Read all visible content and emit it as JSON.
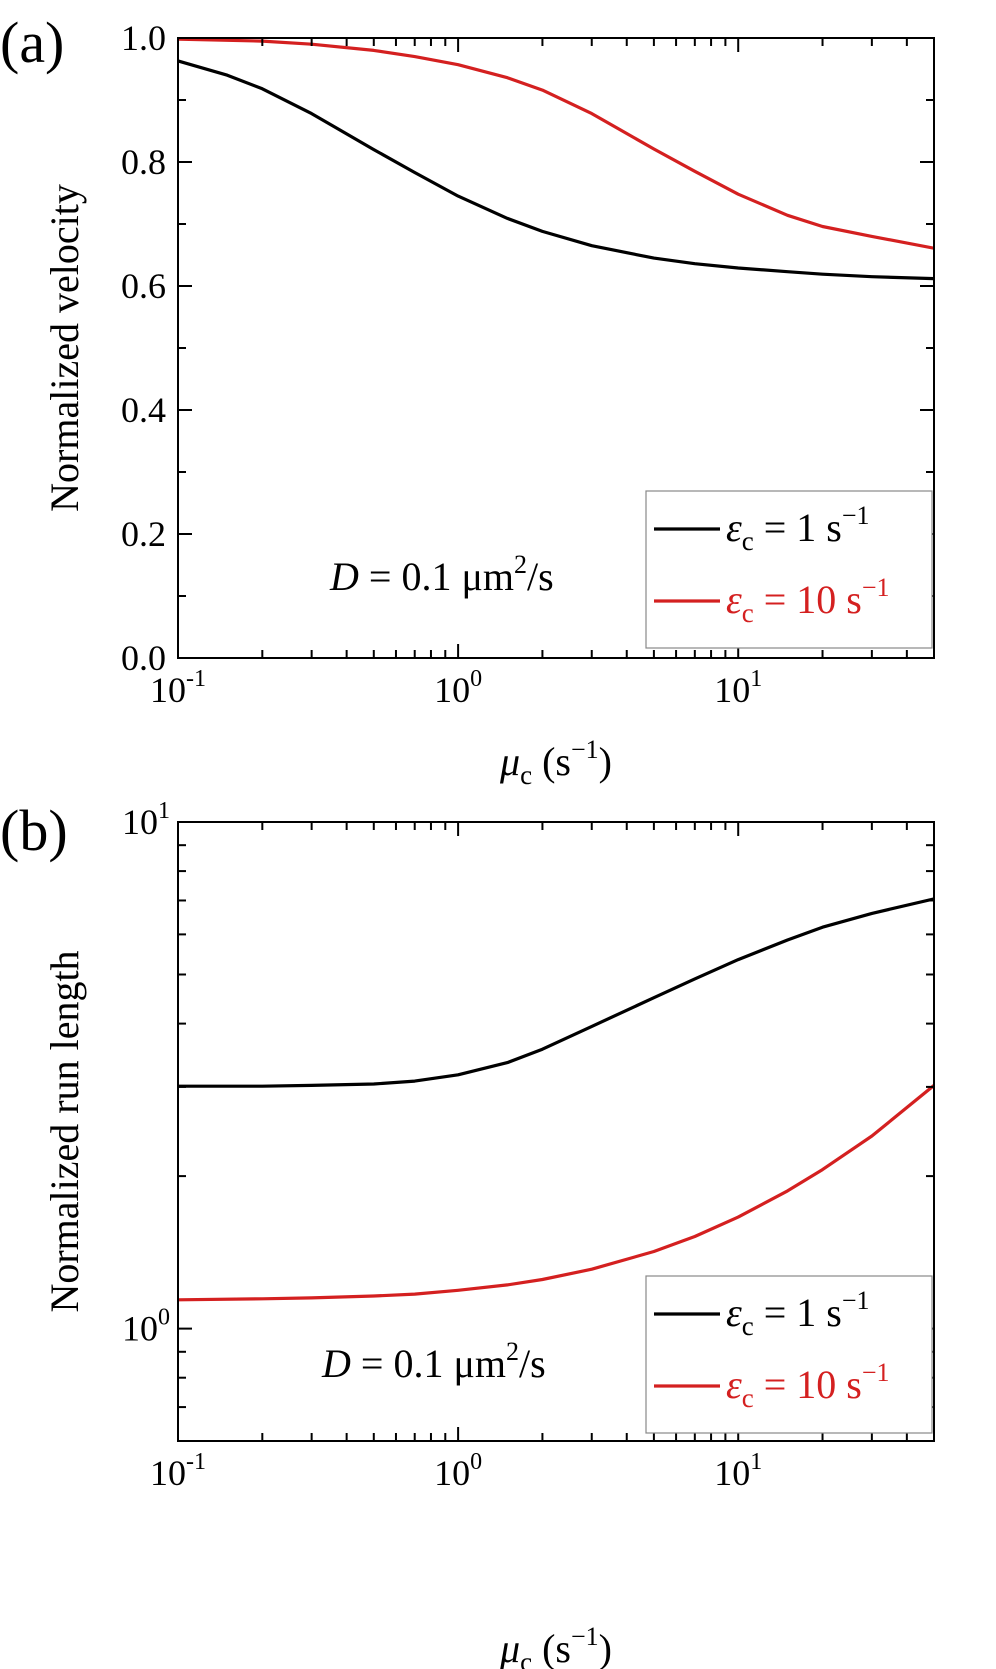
{
  "figure": {
    "panels": [
      {
        "panel_label": "(a)",
        "annotation": {
          "var": "D",
          "eq": " = 0.1 ",
          "unit": "μm",
          "exp": "2",
          "tail": "/s"
        },
        "xlabel": {
          "var": "μ",
          "sub": "c",
          "pre": " (s",
          "exp": "−1",
          "post": ")"
        },
        "ylabel": "Normalized velocity",
        "legend": [
          {
            "var": "ε",
            "sub": "c",
            "eq": " = 1 s",
            "exp": "−1",
            "color": "#000000"
          },
          {
            "var": "ε",
            "sub": "c",
            "eq": " = 10 s",
            "exp": "−1",
            "color": "#d42020"
          }
        ]
      },
      {
        "panel_label": "(b)",
        "annotation": {
          "var": "D",
          "eq": " = 0.1 ",
          "unit": "μm",
          "exp": "2",
          "tail": "/s"
        },
        "xlabel": {
          "var": "μ",
          "sub": "c",
          "pre": " (s",
          "exp": "−1",
          "post": ")"
        },
        "ylabel": "Normalized run length",
        "legend": [
          {
            "var": "ε",
            "sub": "c",
            "eq": " = 1 s",
            "exp": "−1",
            "color": "#000000"
          },
          {
            "var": "ε",
            "sub": "c",
            "eq": " = 10 s",
            "exp": "−1",
            "color": "#d42020"
          }
        ]
      }
    ]
  },
  "chart_data": [
    {
      "type": "line",
      "x_scale": "log",
      "y_scale": "linear",
      "xlim": [
        0.1,
        50
      ],
      "ylim": [
        0.0,
        1.0
      ],
      "x_ticks": [
        {
          "base": "10",
          "exp": "-1",
          "value": 0.1
        },
        {
          "base": "10",
          "exp": "0",
          "value": 1
        },
        {
          "base": "10",
          "exp": "1",
          "value": 10
        }
      ],
      "y_ticks": [
        {
          "label": "0.0",
          "value": 0.0
        },
        {
          "label": "0.2",
          "value": 0.2
        },
        {
          "label": "0.4",
          "value": 0.4
        },
        {
          "label": "0.6",
          "value": 0.6
        },
        {
          "label": "0.8",
          "value": 0.8
        },
        {
          "label": "1.0",
          "value": 1.0
        }
      ],
      "legend_position": "bottom-right",
      "grid": false,
      "series": [
        {
          "color": "#000000",
          "x": [
            0.1,
            0.15,
            0.2,
            0.3,
            0.5,
            0.7,
            1,
            1.5,
            2,
            3,
            5,
            7,
            10,
            15,
            20,
            30,
            50
          ],
          "y": [
            0.963,
            0.94,
            0.918,
            0.878,
            0.82,
            0.783,
            0.745,
            0.709,
            0.688,
            0.665,
            0.645,
            0.636,
            0.629,
            0.623,
            0.619,
            0.615,
            0.612
          ]
        },
        {
          "color": "#d42020",
          "x": [
            0.1,
            0.2,
            0.3,
            0.5,
            0.7,
            1,
            1.5,
            2,
            3,
            5,
            7,
            10,
            15,
            20,
            30,
            50
          ],
          "y": [
            0.998,
            0.995,
            0.99,
            0.98,
            0.97,
            0.957,
            0.936,
            0.916,
            0.878,
            0.821,
            0.785,
            0.748,
            0.714,
            0.696,
            0.68,
            0.661
          ]
        }
      ]
    },
    {
      "type": "line",
      "x_scale": "log",
      "y_scale": "log",
      "xlim": [
        0.1,
        50
      ],
      "ylim": [
        0.6,
        10
      ],
      "x_ticks": [
        {
          "base": "10",
          "exp": "-1",
          "value": 0.1
        },
        {
          "base": "10",
          "exp": "0",
          "value": 1
        },
        {
          "base": "10",
          "exp": "1",
          "value": 10
        }
      ],
      "y_ticks": [
        {
          "base": "10",
          "exp": "0",
          "value": 1
        },
        {
          "base": "10",
          "exp": "1",
          "value": 10
        }
      ],
      "legend_position": "bottom-right",
      "grid": false,
      "series": [
        {
          "color": "#000000",
          "x": [
            0.1,
            0.2,
            0.3,
            0.5,
            0.7,
            1,
            1.5,
            2,
            3,
            5,
            7,
            10,
            15,
            20,
            30,
            50
          ],
          "y": [
            3.01,
            3.01,
            3.02,
            3.04,
            3.08,
            3.17,
            3.35,
            3.56,
            3.95,
            4.5,
            4.9,
            5.35,
            5.85,
            6.2,
            6.6,
            7.05
          ]
        },
        {
          "color": "#d42020",
          "x": [
            0.1,
            0.2,
            0.3,
            0.5,
            0.7,
            1,
            1.5,
            2,
            3,
            5,
            7,
            10,
            15,
            20,
            30,
            50
          ],
          "y": [
            1.14,
            1.145,
            1.15,
            1.16,
            1.17,
            1.19,
            1.22,
            1.25,
            1.31,
            1.42,
            1.52,
            1.66,
            1.87,
            2.06,
            2.4,
            3.02
          ]
        }
      ]
    }
  ]
}
